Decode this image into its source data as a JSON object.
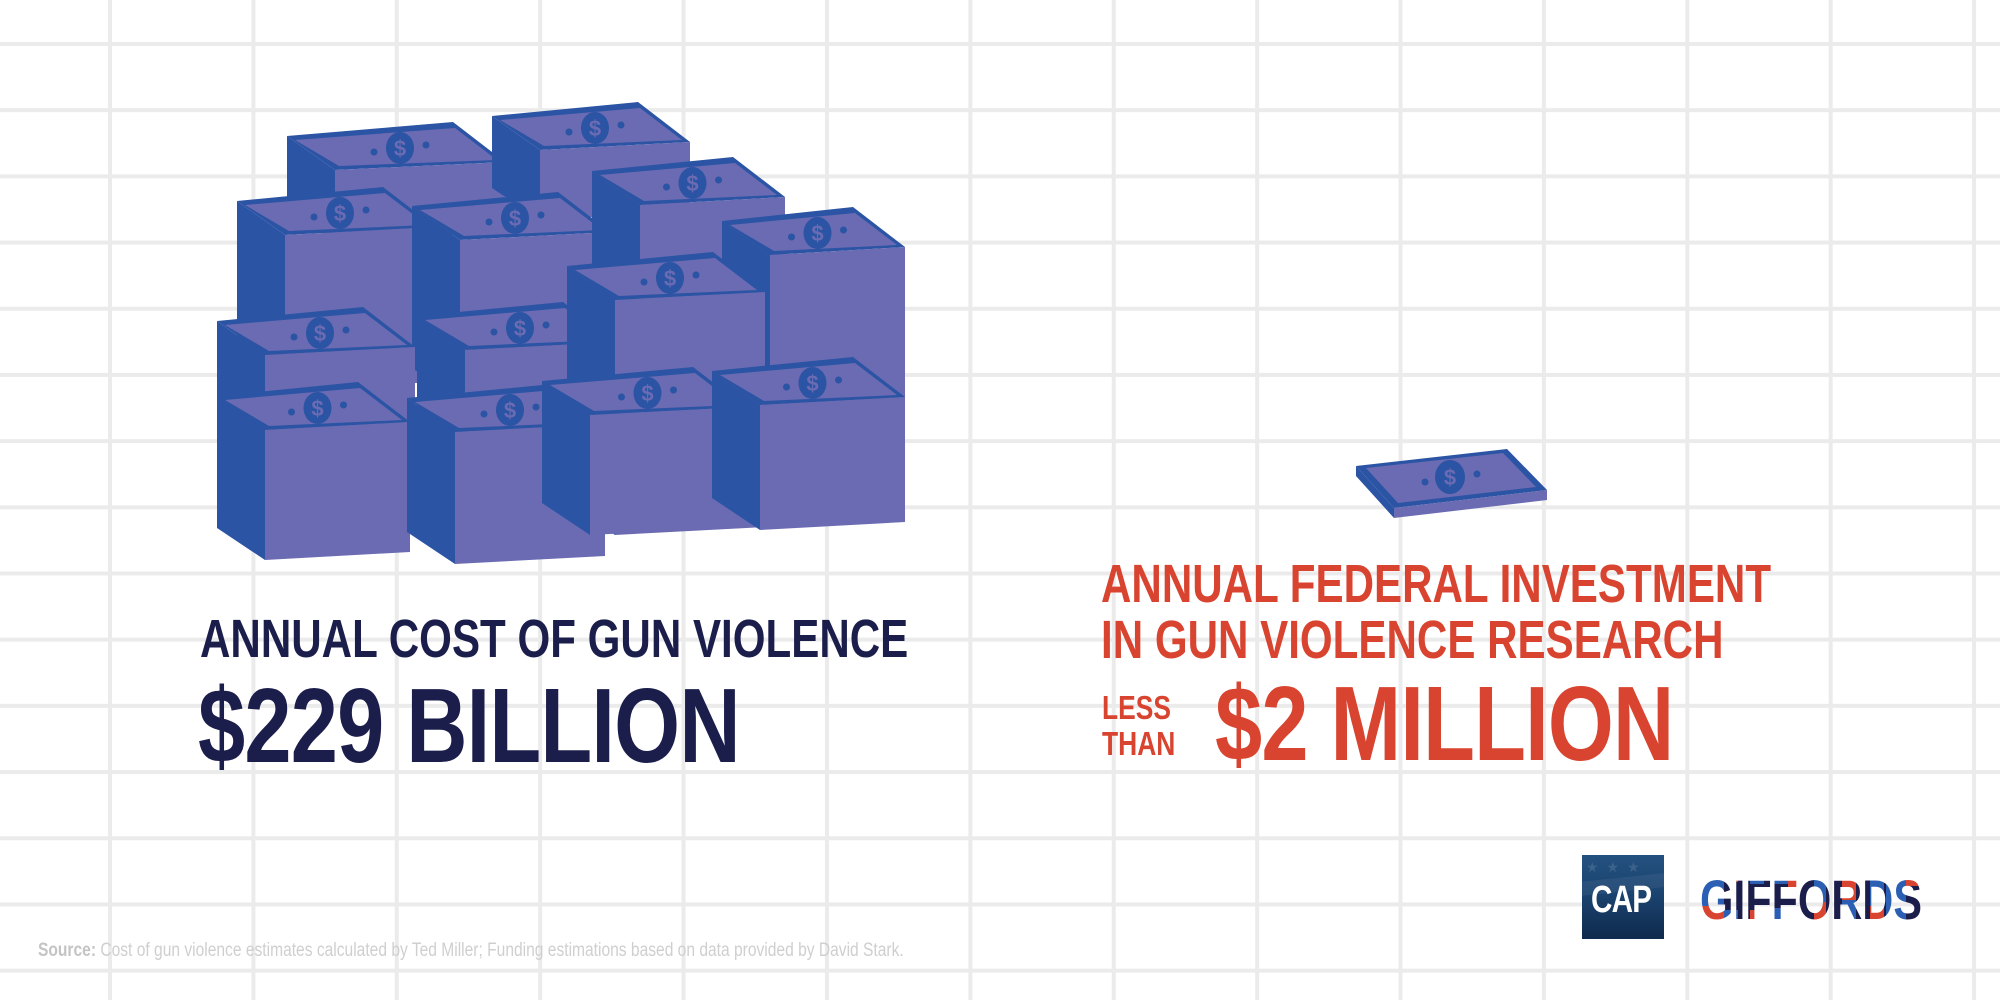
{
  "colors": {
    "background": "#ffffff",
    "grid": "#ebebeb",
    "navy_text": "#1b1e4b",
    "red_text": "#d8442f",
    "bill_face": "#6a6bb2",
    "bill_side": "#2b54a4",
    "source_text": "#cfcfcf"
  },
  "left_panel": {
    "illustration": "stacks-of-money-icon",
    "stack_count": 14,
    "title": "ANNUAL COST OF GUN VIOLENCE",
    "value": "$229 BILLION"
  },
  "right_panel": {
    "illustration": "single-bill-icon",
    "title_line1": "ANNUAL FEDERAL INVESTMENT",
    "title_line2": "IN GUN VIOLENCE RESEARCH",
    "qualifier_line1": "LESS",
    "qualifier_line2": "THAN",
    "value": "$2 MILLION"
  },
  "footer": {
    "source_label": "Source:",
    "source_text": " Cost of gun violence estimates calculated by Ted Miller; Funding estimations based on data provided by David Stark."
  },
  "logos": {
    "cap": "CAP",
    "giffords": "GIFFORDS"
  }
}
